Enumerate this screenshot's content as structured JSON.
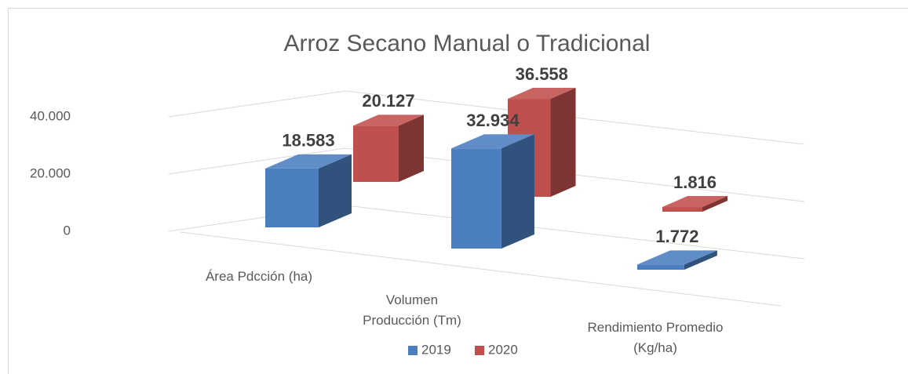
{
  "chart_data": {
    "type": "bar3d",
    "title": "Arroz Secano Manual o Tradicional",
    "categories": [
      "Área Pdcción (ha)",
      "Volumen Producción (Tm)",
      "Rendimiento Promedio (Kg/ha)"
    ],
    "series": [
      {
        "name": "2019",
        "color": "#4a7ebf",
        "values": [
          18583,
          32934,
          1772
        ],
        "value_labels": [
          "18.583",
          "32.934",
          "1.772"
        ]
      },
      {
        "name": "2020",
        "color": "#c0504d",
        "values": [
          20127,
          36558,
          1816
        ],
        "value_labels": [
          "20.127",
          "36.558",
          "1.816"
        ]
      }
    ],
    "ylim": [
      0,
      40000
    ],
    "yticks": [
      0,
      {
        "value": 20000,
        "label": "20.000"
      },
      {
        "value": 40000,
        "label": "40.000"
      }
    ],
    "grid": true,
    "legend": "bottom"
  }
}
